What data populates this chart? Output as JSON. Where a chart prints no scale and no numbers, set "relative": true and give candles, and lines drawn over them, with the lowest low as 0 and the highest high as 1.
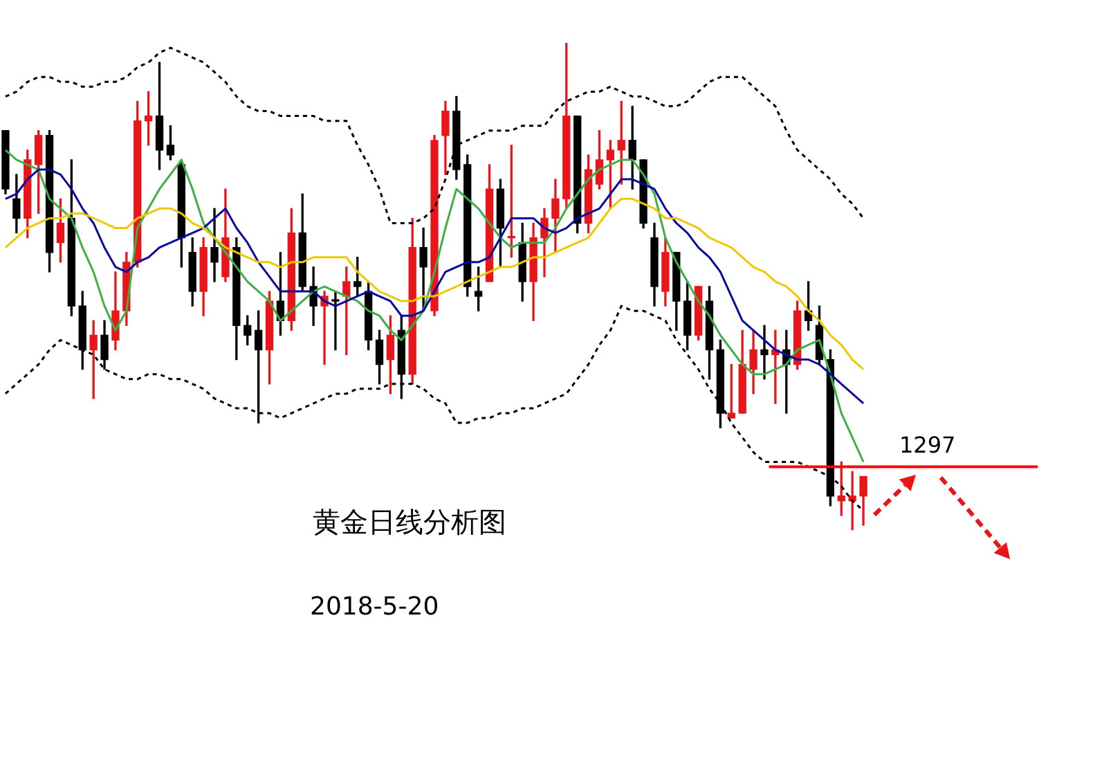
{
  "chart_data": {
    "type": "candlestick",
    "relative": true,
    "tick_labels": false,
    "categories": [
      null,
      null,
      null,
      null,
      null,
      null,
      null,
      null,
      null,
      null,
      null,
      null,
      null,
      null,
      null,
      null,
      null,
      null,
      null,
      null,
      null,
      null,
      null,
      null,
      null,
      null,
      null,
      null,
      null,
      null,
      null,
      null,
      null,
      null,
      null,
      null,
      null,
      null,
      null,
      null,
      null,
      null,
      null,
      null,
      null,
      null,
      null,
      null,
      null,
      null,
      null,
      null,
      null,
      null,
      null,
      null,
      null,
      null,
      null,
      null,
      null,
      null,
      null,
      null,
      null,
      null,
      null,
      null,
      null,
      null,
      null,
      null,
      null,
      null,
      null,
      null,
      null,
      null,
      null
    ],
    "ohlc": [
      [
        0.82,
        0.82,
        0.69,
        0.7
      ],
      [
        0.68,
        0.73,
        0.61,
        0.64
      ],
      [
        0.64,
        0.78,
        0.6,
        0.76
      ],
      [
        0.75,
        0.82,
        0.65,
        0.81
      ],
      [
        0.81,
        0.82,
        0.53,
        0.57
      ],
      [
        0.59,
        0.68,
        0.55,
        0.63
      ],
      [
        0.64,
        0.76,
        0.44,
        0.46
      ],
      [
        0.46,
        0.49,
        0.33,
        0.37
      ],
      [
        0.37,
        0.43,
        0.27,
        0.4
      ],
      [
        0.4,
        0.43,
        0.33,
        0.35
      ],
      [
        0.39,
        0.53,
        0.37,
        0.45
      ],
      [
        0.45,
        0.57,
        0.42,
        0.55
      ],
      [
        0.55,
        0.88,
        0.54,
        0.84
      ],
      [
        0.84,
        0.9,
        0.79,
        0.85
      ],
      [
        0.85,
        0.96,
        0.74,
        0.78
      ],
      [
        0.79,
        0.83,
        0.76,
        0.77
      ],
      [
        0.75,
        0.76,
        0.54,
        0.6
      ],
      [
        0.57,
        0.6,
        0.46,
        0.49
      ],
      [
        0.49,
        0.6,
        0.44,
        0.58
      ],
      [
        0.58,
        0.66,
        0.51,
        0.55
      ],
      [
        0.52,
        0.7,
        0.51,
        0.6
      ],
      [
        0.58,
        0.6,
        0.35,
        0.42
      ],
      [
        0.42,
        0.44,
        0.38,
        0.4
      ],
      [
        0.41,
        0.45,
        0.22,
        0.37
      ],
      [
        0.37,
        0.49,
        0.3,
        0.47
      ],
      [
        0.47,
        0.57,
        0.4,
        0.43
      ],
      [
        0.43,
        0.66,
        0.41,
        0.61
      ],
      [
        0.61,
        0.69,
        0.49,
        0.5
      ],
      [
        0.5,
        0.54,
        0.42,
        0.46
      ],
      [
        0.46,
        0.49,
        0.34,
        0.48
      ],
      [
        0.47,
        0.49,
        0.37,
        0.47
      ],
      [
        0.48,
        0.54,
        0.36,
        0.51
      ],
      [
        0.51,
        0.56,
        0.48,
        0.5
      ],
      [
        0.49,
        0.51,
        0.37,
        0.39
      ],
      [
        0.39,
        0.41,
        0.3,
        0.34
      ],
      [
        0.35,
        0.44,
        0.28,
        0.4
      ],
      [
        0.41,
        0.44,
        0.27,
        0.32
      ],
      [
        0.32,
        0.64,
        0.3,
        0.58
      ],
      [
        0.58,
        0.62,
        0.45,
        0.54
      ],
      [
        0.45,
        0.81,
        0.44,
        0.8
      ],
      [
        0.81,
        0.88,
        0.73,
        0.86
      ],
      [
        0.86,
        0.89,
        0.72,
        0.74
      ],
      [
        0.75,
        0.77,
        0.48,
        0.5
      ],
      [
        0.49,
        0.54,
        0.45,
        0.48
      ],
      [
        0.51,
        0.75,
        0.51,
        0.7
      ],
      [
        0.7,
        0.72,
        0.54,
        0.62
      ],
      [
        0.6,
        0.79,
        0.56,
        0.6
      ],
      [
        0.59,
        0.63,
        0.47,
        0.51
      ],
      [
        0.51,
        0.63,
        0.43,
        0.6
      ],
      [
        0.6,
        0.66,
        0.52,
        0.64
      ],
      [
        0.64,
        0.72,
        0.57,
        0.68
      ],
      [
        0.68,
        1,
        0.66,
        0.85
      ],
      [
        0.85,
        0.85,
        0.61,
        0.63
      ],
      [
        0.63,
        0.77,
        0.61,
        0.74
      ],
      [
        0.71,
        0.82,
        0.7,
        0.76
      ],
      [
        0.76,
        0.8,
        0.66,
        0.78
      ],
      [
        0.78,
        0.88,
        0.71,
        0.8
      ],
      [
        0.8,
        0.87,
        0.7,
        0.76
      ],
      [
        0.76,
        0.76,
        0.62,
        0.63
      ],
      [
        0.6,
        0.63,
        0.46,
        0.5
      ],
      [
        0.49,
        0.6,
        0.46,
        0.57
      ],
      [
        0.57,
        0.57,
        0.41,
        0.47
      ],
      [
        0.47,
        0.51,
        0.37,
        0.4
      ],
      [
        0.4,
        0.5,
        0.39,
        0.5
      ],
      [
        0.47,
        0.5,
        0.31,
        0.37
      ],
      [
        0.37,
        0.39,
        0.21,
        0.24
      ],
      [
        0.23,
        0.34,
        0.23,
        0.24
      ],
      [
        0.24,
        0.41,
        0.24,
        0.34
      ],
      [
        0.33,
        0.41,
        0.28,
        0.37
      ],
      [
        0.37,
        0.42,
        0.31,
        0.36
      ],
      [
        0.36,
        0.41,
        0.26,
        0.37
      ],
      [
        0.37,
        0.41,
        0.24,
        0.34
      ],
      [
        0.34,
        0.47,
        0.33,
        0.45
      ],
      [
        0.45,
        0.51,
        0.41,
        0.43
      ],
      [
        0.42,
        0.46,
        0.34,
        0.35
      ],
      [
        0.35,
        0.37,
        0.05,
        0.07
      ],
      [
        0.06,
        0.14,
        0.03,
        0.07
      ],
      [
        0.06,
        0.12,
        0,
        0.07
      ],
      [
        0.07,
        0.11,
        0.01,
        0.11
      ]
    ],
    "colors": [
      "#000000",
      "#000000",
      "#e8161b",
      "#e8161b",
      "#000000",
      "#e8161b",
      "#000000",
      "#000000",
      "#e8161b",
      "#000000",
      "#e8161b",
      "#e8161b",
      "#e8161b",
      "#e8161b",
      "#000000",
      "#000000",
      "#000000",
      "#000000",
      "#e8161b",
      "#000000",
      "#e8161b",
      "#000000",
      "#000000",
      "#000000",
      "#e8161b",
      "#000000",
      "#e8161b",
      "#000000",
      "#000000",
      "#e8161b",
      "#000000",
      "#e8161b",
      "#000000",
      "#000000",
      "#000000",
      "#e8161b",
      "#000000",
      "#e8161b",
      "#000000",
      "#e8161b",
      "#e8161b",
      "#000000",
      "#000000",
      "#000000",
      "#e8161b",
      "#000000",
      "#e8161b",
      "#000000",
      "#e8161b",
      "#e8161b",
      "#e8161b",
      "#e8161b",
      "#000000",
      "#e8161b",
      "#e8161b",
      "#e8161b",
      "#e8161b",
      "#000000",
      "#000000",
      "#000000",
      "#e8161b",
      "#000000",
      "#000000",
      "#e8161b",
      "#000000",
      "#000000",
      "#e8161b",
      "#e8161b",
      "#e8161b",
      "#000000",
      "#e8161b",
      "#000000",
      "#e8161b",
      "#000000",
      "#000000",
      "#000000",
      "#e8161b",
      "#e8161b",
      "#e8161b"
    ],
    "series": [
      {
        "type": "line",
        "color": "#000000",
        "line_style": "dashed",
        "values": [
          0.89,
          0.9,
          0.92,
          0.93,
          0.93,
          0.92,
          0.92,
          0.91,
          0.91,
          0.92,
          0.92,
          0.93,
          0.95,
          0.96,
          0.98,
          0.99,
          0.98,
          0.97,
          0.96,
          0.94,
          0.92,
          0.89,
          0.87,
          0.86,
          0.86,
          0.85,
          0.85,
          0.85,
          0.85,
          0.84,
          0.84,
          0.84,
          0.79,
          0.75,
          0.7,
          0.63,
          0.63,
          0.63,
          0.64,
          0.66,
          0.72,
          0.79,
          0.8,
          0.81,
          0.82,
          0.82,
          0.82,
          0.83,
          0.83,
          0.83,
          0.86,
          0.88,
          0.89,
          0.9,
          0.9,
          0.91,
          0.9,
          0.89,
          0.89,
          0.88,
          0.87,
          0.87,
          0.88,
          0.9,
          0.92,
          0.93,
          0.93,
          0.93,
          0.91,
          0.89,
          0.87,
          0.82,
          0.78,
          0.76,
          0.74,
          0.72,
          0.69,
          0.67,
          0.64
        ]
      },
      {
        "type": "line",
        "color": "#000000",
        "line_style": "dashed",
        "values": [
          0.28,
          0.3,
          0.32,
          0.34,
          0.37,
          0.39,
          0.38,
          0.37,
          0.36,
          0.33,
          0.32,
          0.31,
          0.31,
          0.32,
          0.32,
          0.31,
          0.31,
          0.3,
          0.29,
          0.27,
          0.26,
          0.25,
          0.25,
          0.24,
          0.24,
          0.23,
          0.24,
          0.25,
          0.26,
          0.27,
          0.28,
          0.28,
          0.29,
          0.29,
          0.29,
          0.3,
          0.3,
          0.3,
          0.29,
          0.27,
          0.26,
          0.22,
          0.22,
          0.23,
          0.23,
          0.24,
          0.24,
          0.25,
          0.25,
          0.26,
          0.27,
          0.28,
          0.31,
          0.34,
          0.38,
          0.41,
          0.46,
          0.45,
          0.45,
          0.44,
          0.43,
          0.39,
          0.36,
          0.33,
          0.29,
          0.26,
          0.22,
          0.19,
          0.16,
          0.14,
          0.14,
          0.14,
          0.14,
          0.13,
          0.12,
          0.11,
          0.09,
          0.06,
          0.04
        ]
      },
      {
        "type": "line",
        "color": "#f0c800",
        "values": [
          0.58,
          0.6,
          0.62,
          0.63,
          0.64,
          0.64,
          0.65,
          0.65,
          0.64,
          0.63,
          0.62,
          0.62,
          0.64,
          0.65,
          0.66,
          0.66,
          0.65,
          0.63,
          0.62,
          0.6,
          0.58,
          0.57,
          0.56,
          0.55,
          0.55,
          0.54,
          0.55,
          0.55,
          0.56,
          0.56,
          0.56,
          0.56,
          0.53,
          0.51,
          0.49,
          0.48,
          0.47,
          0.47,
          0.48,
          0.48,
          0.49,
          0.5,
          0.51,
          0.52,
          0.53,
          0.54,
          0.54,
          0.55,
          0.56,
          0.56,
          0.57,
          0.58,
          0.59,
          0.6,
          0.63,
          0.66,
          0.68,
          0.68,
          0.67,
          0.66,
          0.64,
          0.64,
          0.63,
          0.62,
          0.6,
          0.59,
          0.58,
          0.56,
          0.54,
          0.53,
          0.51,
          0.5,
          0.48,
          0.45,
          0.43,
          0.4,
          0.38,
          0.35,
          0.33
        ]
      },
      {
        "type": "line",
        "color": "#0a0aa0",
        "values": [
          0.68,
          0.69,
          0.72,
          0.74,
          0.74,
          0.73,
          0.7,
          0.66,
          0.63,
          0.58,
          0.54,
          0.53,
          0.55,
          0.56,
          0.58,
          0.59,
          0.6,
          0.61,
          0.62,
          0.64,
          0.66,
          0.62,
          0.59,
          0.55,
          0.52,
          0.49,
          0.49,
          0.49,
          0.49,
          0.47,
          0.46,
          0.47,
          0.48,
          0.49,
          0.48,
          0.47,
          0.44,
          0.44,
          0.45,
          0.49,
          0.53,
          0.54,
          0.55,
          0.55,
          0.56,
          0.6,
          0.64,
          0.64,
          0.64,
          0.62,
          0.61,
          0.62,
          0.64,
          0.65,
          0.66,
          0.69,
          0.72,
          0.72,
          0.71,
          0.7,
          0.66,
          0.63,
          0.61,
          0.58,
          0.56,
          0.53,
          0.48,
          0.43,
          0.41,
          0.39,
          0.37,
          0.36,
          0.35,
          0.35,
          0.34,
          0.32,
          0.3,
          0.28,
          0.26
        ]
      },
      {
        "type": "line",
        "color": "#3cb043",
        "values": [
          0.78,
          0.76,
          0.75,
          0.74,
          0.68,
          0.66,
          0.64,
          0.58,
          0.53,
          0.46,
          0.41,
          0.45,
          0.62,
          0.66,
          0.7,
          0.73,
          0.76,
          0.7,
          0.63,
          0.6,
          0.57,
          0.54,
          0.51,
          0.49,
          0.47,
          0.43,
          0.45,
          0.47,
          0.49,
          0.5,
          0.49,
          0.48,
          0.47,
          0.45,
          0.44,
          0.41,
          0.39,
          0.42,
          0.45,
          0.53,
          0.62,
          0.7,
          0.68,
          0.66,
          0.63,
          0.6,
          0.58,
          0.59,
          0.59,
          0.59,
          0.62,
          0.66,
          0.69,
          0.72,
          0.74,
          0.75,
          0.76,
          0.76,
          0.73,
          0.69,
          0.6,
          0.55,
          0.51,
          0.47,
          0.44,
          0.4,
          0.37,
          0.34,
          0.32,
          0.32,
          0.33,
          0.34,
          0.37,
          0.38,
          0.39,
          0.32,
          0.24,
          0.19,
          0.14
        ]
      }
    ],
    "ref_lines": [
      {
        "axis": "y",
        "value": 0.13,
        "color": "#ff0000"
      }
    ],
    "annotations": [
      "1297",
      "黄金日线分析图",
      "2018-5-20"
    ]
  }
}
